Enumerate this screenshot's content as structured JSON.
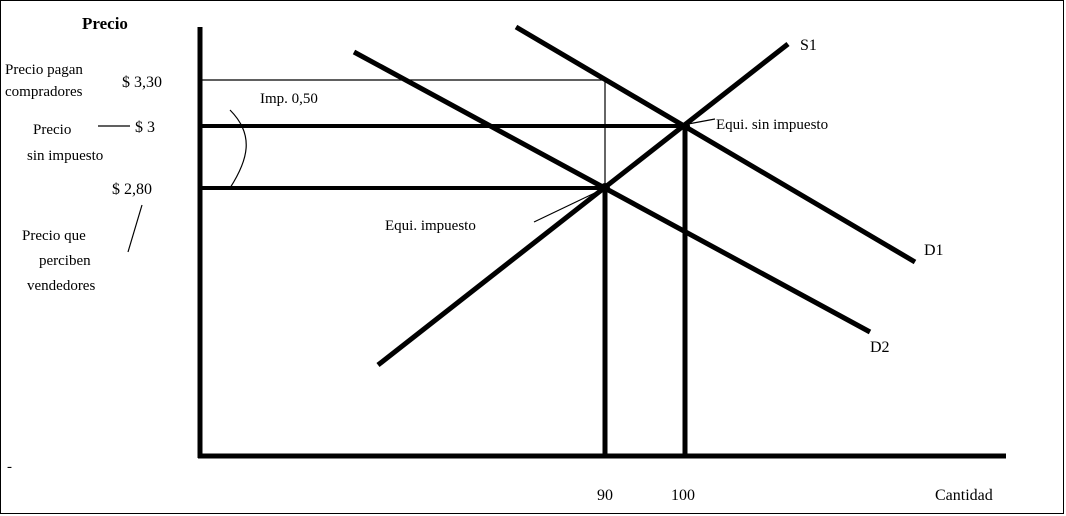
{
  "axes": {
    "y_label": "Precio",
    "x_label": "Cantidad",
    "x_ticks": [
      "90",
      "100"
    ]
  },
  "prices": {
    "p_buyers": "$ 3,30",
    "p_no_tax": "$ 3",
    "p_sellers": "$ 2,80"
  },
  "left_notes": {
    "buyers_line1": "Precio pagan",
    "buyers_line2": "compradores",
    "notax_line1": "Precio",
    "notax_line2": "sin impuesto",
    "sellers_line1": "Precio que",
    "sellers_line2": "perciben",
    "sellers_line3": "vendedores"
  },
  "tax_label": "Imp. 0,50",
  "curves": {
    "supply": "S1",
    "demand_1": "D1",
    "demand_2": "D2"
  },
  "equilibria": {
    "no_tax": "Equi. sin impuesto",
    "with_tax": "Equi. impuesto"
  },
  "stray_mark": "-"
}
